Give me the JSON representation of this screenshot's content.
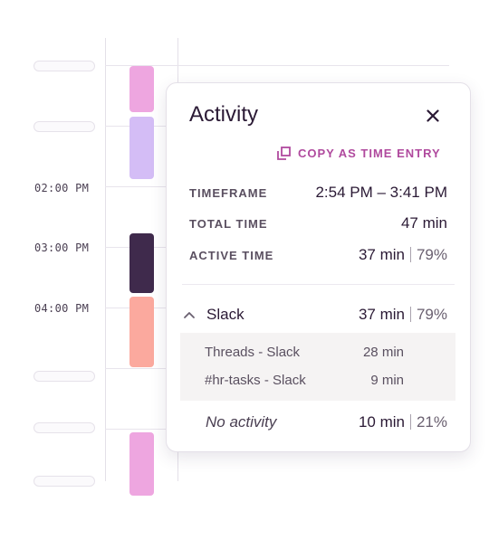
{
  "timeline": {
    "time_labels": [
      "02:00 PM",
      "03:00 PM",
      "04:00 PM"
    ],
    "block_colors": [
      "#eea6e0",
      "#d4bdf6",
      "#3f2a4c",
      "#fba99e",
      "#eea6e0"
    ]
  },
  "popover": {
    "title": "Activity",
    "copy_label": "COPY AS TIME ENTRY",
    "rows": {
      "timeframe": {
        "label": "TIMEFRAME",
        "value": "2:54 PM – 3:41 PM"
      },
      "total": {
        "label": "TOTAL TIME",
        "value": "47 min"
      },
      "active": {
        "label": "ACTIVE TIME",
        "value": "37 min",
        "percent": "79%"
      }
    },
    "app": {
      "name": "Slack",
      "time": "37 min",
      "percent": "79%",
      "expanded": true,
      "items": [
        {
          "name": "Threads - Slack",
          "time": "28 min"
        },
        {
          "name": "#hr-tasks - Slack",
          "time": "9 min"
        }
      ]
    },
    "no_activity": {
      "label": "No activity",
      "time": "10 min",
      "percent": "21%"
    }
  },
  "colors": {
    "accent": "#b04a9e",
    "text": "#2b1a35"
  }
}
